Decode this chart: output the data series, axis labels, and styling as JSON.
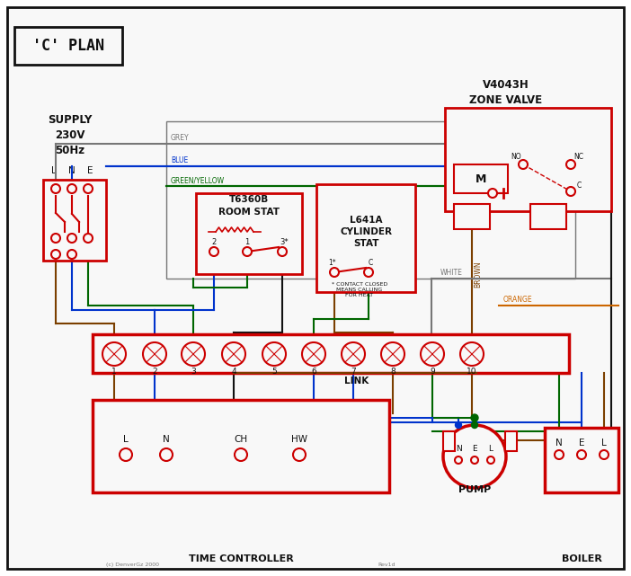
{
  "red": "#cc0000",
  "blue": "#0033cc",
  "green": "#006600",
  "grey": "#777777",
  "brown": "#7B3F00",
  "orange": "#CC6600",
  "black": "#111111",
  "white": "#ffffff",
  "bg": "#f8f8f8",
  "title": "'C' PLAN",
  "supply_text": "SUPPLY\n230V\n50Hz",
  "zone_valve_label": "V4043H\nZONE VALVE",
  "room_stat_label": "T6360B\nROOM STAT",
  "cyl_stat_label": "L641A\nCYLINDER\nSTAT",
  "time_ctrl_label": "TIME CONTROLLER",
  "pump_label": "PUMP",
  "boiler_label": "BOILER",
  "link_label": "LINK",
  "copyright": "(c) DenverGz 2000",
  "rev": "Rev1d"
}
